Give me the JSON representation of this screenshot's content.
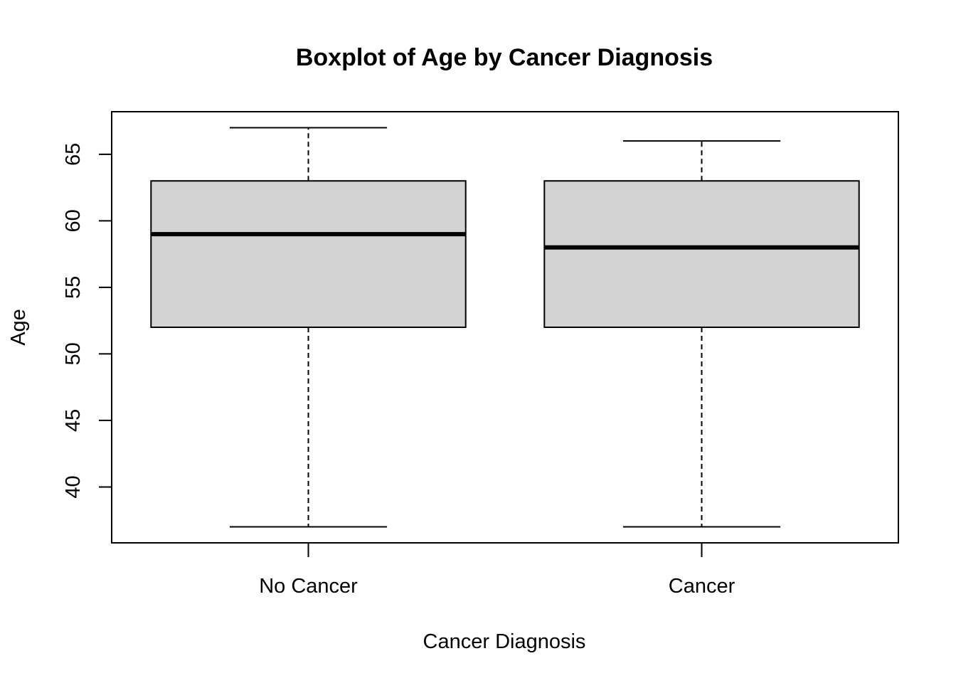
{
  "chart_data": {
    "type": "boxplot",
    "title": "Boxplot of Age by Cancer Diagnosis",
    "xlabel": "Cancer Diagnosis",
    "ylabel": "Age",
    "ylim": [
      35.8,
      68.2
    ],
    "y_ticks": [
      40,
      45,
      50,
      55,
      60,
      65
    ],
    "grid": false,
    "legend": "none",
    "box_fill": "#d3d3d3",
    "categories": [
      "No Cancer",
      "Cancer"
    ],
    "series": [
      {
        "category": "No Cancer",
        "whisker_low": 37,
        "q1": 52,
        "median": 59,
        "q3": 63,
        "whisker_high": 67
      },
      {
        "category": "Cancer",
        "whisker_low": 37,
        "q1": 52,
        "median": 58,
        "q3": 63,
        "whisker_high": 66
      }
    ]
  }
}
